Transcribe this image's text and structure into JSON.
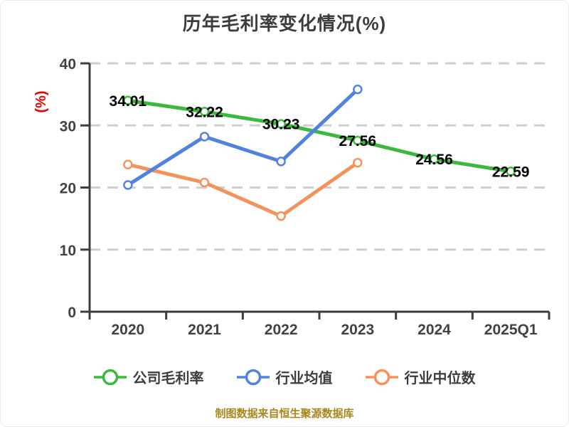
{
  "title": "历年毛利率变化情况(%)",
  "footer": "制图数据来自恒生聚源数据库",
  "colors": {
    "title": "#3d3d3d",
    "axis": "#3d3d3d",
    "grid": "#cfcfcf",
    "tick_label": "#424242",
    "value_label": "#000000",
    "y_axis_title": "#e60000",
    "footer": "#aa861d",
    "marker_fill": "#ffffff"
  },
  "chart_data": {
    "type": "line",
    "title": "历年毛利率变化情况(%)",
    "categories": [
      "2020",
      "2021",
      "2022",
      "2023",
      "2024",
      "2025Q1"
    ],
    "series": [
      {
        "name": "公司毛利率",
        "color": "#3cb83c",
        "values": [
          34.01,
          32.22,
          30.23,
          27.56,
          24.56,
          22.59
        ],
        "point_labels": true
      },
      {
        "name": "行业均值",
        "color": "#5083e0",
        "values": [
          20.4,
          28.2,
          24.2,
          35.8,
          null,
          null
        ],
        "point_labels": false
      },
      {
        "name": "行业中位数",
        "color": "#f4925c",
        "values": [
          23.7,
          20.8,
          15.4,
          24.0,
          null,
          null
        ],
        "point_labels": false
      }
    ],
    "ylabel": "(%)",
    "xlabel": "",
    "ylim": [
      0,
      40
    ],
    "yticks": [
      0,
      10,
      20,
      30,
      40
    ],
    "grid": "dashed-horizontal",
    "legend_position": "bottom",
    "source_note": "制图数据来自恒生聚源数据库"
  }
}
